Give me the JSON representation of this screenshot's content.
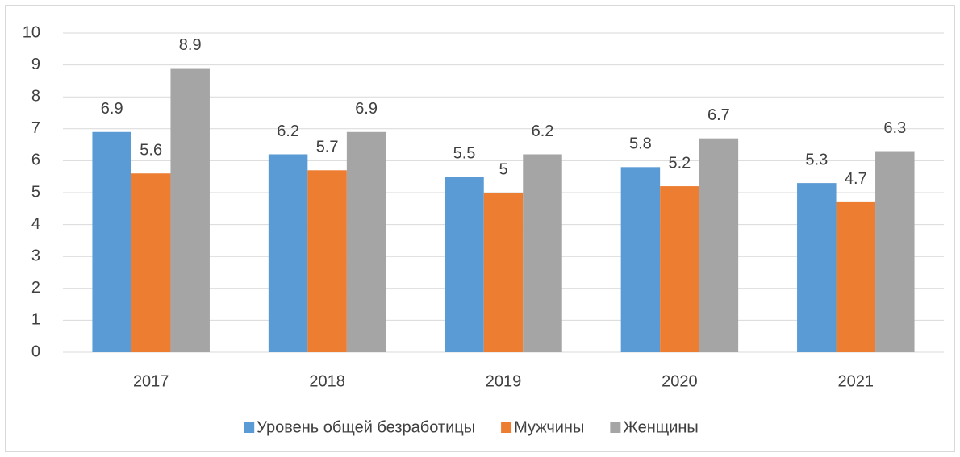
{
  "chart_data": {
    "type": "bar",
    "categories": [
      "2017",
      "2018",
      "2019",
      "2020",
      "2021"
    ],
    "series": [
      {
        "name": "Уровень общей безработицы",
        "color": "#5b9bd5",
        "values": [
          6.9,
          6.2,
          5.5,
          5.8,
          5.3
        ]
      },
      {
        "name": "Мужчины",
        "color": "#ed7d31",
        "values": [
          5.6,
          5.7,
          5,
          5.2,
          4.7
        ]
      },
      {
        "name": "Женщины",
        "color": "#a5a5a5",
        "values": [
          8.9,
          6.9,
          6.2,
          6.7,
          6.3
        ]
      }
    ],
    "ylim": [
      0,
      10
    ],
    "yticks": [
      0,
      1,
      2,
      3,
      4,
      5,
      6,
      7,
      8,
      9,
      10
    ],
    "grid": true,
    "legend": "bottom"
  }
}
